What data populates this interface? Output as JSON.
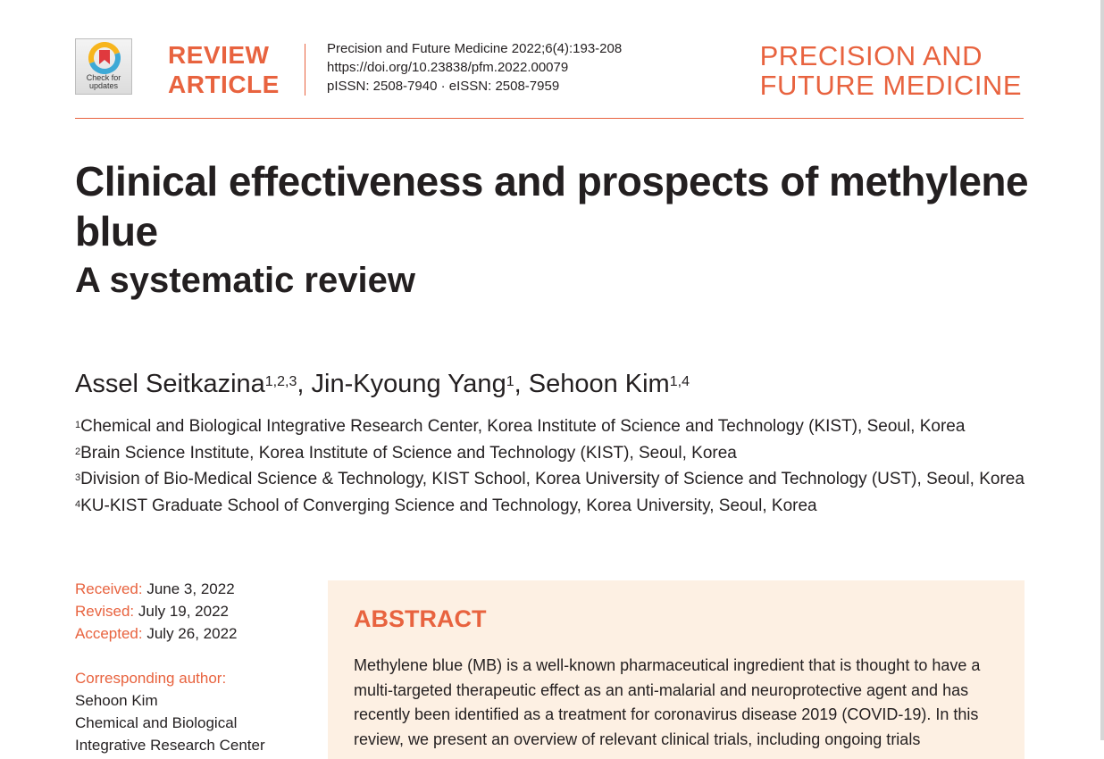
{
  "header": {
    "crossmark_line1": "Check for",
    "crossmark_line2": "updates",
    "article_type_line1": "REVIEW",
    "article_type_line2": "ARTICLE",
    "citation": "Precision and Future Medicine 2022;6(4):193-208",
    "doi": "https://doi.org/10.23838/pfm.2022.00079",
    "issn": "pISSN: 2508-7940 · eISSN: 2508-7959",
    "journal_line1": "PRECISION AND",
    "journal_line2": "FUTURE MEDICINE"
  },
  "article": {
    "title": "Clinical effectiveness and prospects of methylene blue",
    "subtitle": "A systematic review"
  },
  "authors": [
    {
      "name": "Assel Seitkazina",
      "aff": "1,2,3",
      "sep": ", "
    },
    {
      "name": "Jin-Kyoung Yang",
      "aff": "1",
      "sep": ", "
    },
    {
      "name": "Sehoon Kim",
      "aff": "1,4",
      "sep": ""
    }
  ],
  "affiliations": [
    {
      "num": "1",
      "text": "Chemical and Biological Integrative Research Center, Korea Institute of Science and Technology (KIST), Seoul, Korea"
    },
    {
      "num": "2",
      "text": "Brain Science Institute, Korea Institute of Science and Technology (KIST), Seoul, Korea"
    },
    {
      "num": "3",
      "text": "Division of Bio-Medical Science & Technology, KIST School, Korea University of Science and Technology (UST), Seoul, Korea"
    },
    {
      "num": "4",
      "text": "KU-KIST Graduate School of Converging Science and Technology, Korea University, Seoul, Korea"
    }
  ],
  "dates": {
    "received_label": "Received:",
    "received": "June 3, 2022",
    "revised_label": "Revised:",
    "revised": "July 19, 2022",
    "accepted_label": "Accepted:",
    "accepted": "July 26, 2022"
  },
  "correspondence": {
    "label": "Corresponding author:",
    "name": "Sehoon Kim",
    "line1": "Chemical and Biological",
    "line2": "Integrative Research Center"
  },
  "abstract": {
    "heading": "ABSTRACT",
    "text": "Methylene blue (MB) is a well-known pharmaceutical ingredient that is thought to have a multi-targeted therapeutic effect as an anti-malarial and neuroprotective agent and has recently been identified as a treatment for coronavirus disease 2019 (COVID-19). In this review, we present an overview of relevant clinical trials, including ongoing trials"
  },
  "colors": {
    "accent": "#e8633f",
    "abstract_bg": "#fdf0e3",
    "text": "#231f20"
  }
}
